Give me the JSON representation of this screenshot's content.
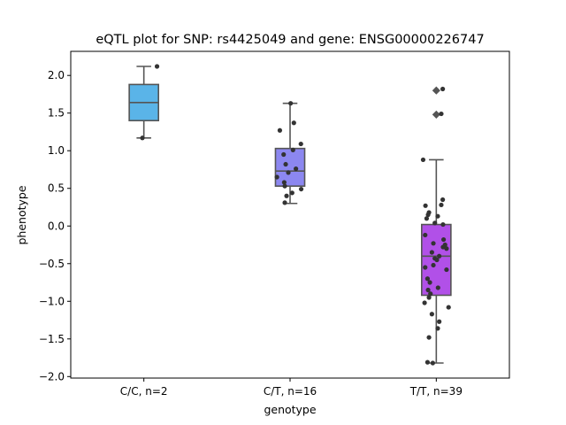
{
  "chart_data": {
    "type": "box",
    "title": "eQTL plot for SNP: rs4425049 and gene: ENSG00000226747",
    "xlabel": "genotype",
    "ylabel": "phenotype",
    "ylim": [
      -2.02,
      2.32
    ],
    "yticks": [
      -2.0,
      -1.5,
      -1.0,
      -0.5,
      0.0,
      0.5,
      1.0,
      1.5,
      2.0
    ],
    "ytick_labels": [
      "−2.0",
      "−1.5",
      "−1.0",
      "−0.5",
      "0.0",
      "0.5",
      "1.0",
      "1.5",
      "2.0"
    ],
    "grid": false,
    "legend": "none",
    "categories": [
      "C/C, n=2",
      "C/T, n=16",
      "T/T, n=39"
    ],
    "boxes": [
      {
        "color": "#5ab4e8",
        "q1": 1.4,
        "median": 1.64,
        "q3": 1.88,
        "whisker_low": 1.17,
        "whisker_high": 2.12,
        "fliers": [],
        "points": [
          [
            1.17,
            -0.05
          ],
          [
            2.12,
            0.45
          ]
        ]
      },
      {
        "color": "#8c87f0",
        "q1": 0.53,
        "median": 0.73,
        "q3": 1.03,
        "whisker_low": 0.3,
        "whisker_high": 1.63,
        "fliers": [],
        "points": [
          [
            1.63,
            0.02
          ],
          [
            1.37,
            0.13
          ],
          [
            1.27,
            -0.35
          ],
          [
            1.09,
            0.37
          ],
          [
            1.01,
            0.1
          ],
          [
            0.95,
            -0.22
          ],
          [
            0.82,
            -0.15
          ],
          [
            0.76,
            0.2
          ],
          [
            0.71,
            -0.06
          ],
          [
            0.65,
            -0.45
          ],
          [
            0.58,
            -0.2
          ],
          [
            0.53,
            -0.18
          ],
          [
            0.49,
            0.38
          ],
          [
            0.44,
            0.07
          ],
          [
            0.4,
            -0.12
          ],
          [
            0.31,
            -0.18
          ]
        ]
      },
      {
        "color": "#b150e8",
        "q1": -0.92,
        "median": -0.4,
        "q3": 0.02,
        "whisker_low": -1.82,
        "whisker_high": 0.88,
        "fliers": [
          1.8,
          1.48
        ],
        "points": [
          [
            1.82,
            0.22
          ],
          [
            1.49,
            0.17
          ],
          [
            0.88,
            -0.45
          ],
          [
            0.35,
            0.22
          ],
          [
            0.28,
            0.17
          ],
          [
            0.27,
            -0.37
          ],
          [
            0.18,
            -0.25
          ],
          [
            0.15,
            -0.28
          ],
          [
            0.13,
            0.05
          ],
          [
            0.1,
            -0.33
          ],
          [
            0.04,
            -0.05
          ],
          [
            0.02,
            0.23
          ],
          [
            -0.12,
            -0.38
          ],
          [
            -0.18,
            0.25
          ],
          [
            -0.23,
            -0.1
          ],
          [
            -0.25,
            0.3
          ],
          [
            -0.28,
            0.23
          ],
          [
            -0.3,
            0.35
          ],
          [
            -0.35,
            -0.15
          ],
          [
            -0.4,
            0.1
          ],
          [
            -0.43,
            -0.05
          ],
          [
            -0.45,
            0.02
          ],
          [
            -0.52,
            -0.1
          ],
          [
            -0.55,
            -0.38
          ],
          [
            -0.58,
            0.35
          ],
          [
            -0.7,
            -0.3
          ],
          [
            -0.75,
            -0.22
          ],
          [
            -0.82,
            0.06
          ],
          [
            -0.85,
            -0.28
          ],
          [
            -0.9,
            -0.2
          ],
          [
            -0.95,
            -0.25
          ],
          [
            -1.02,
            -0.4
          ],
          [
            -1.08,
            0.42
          ],
          [
            -1.17,
            -0.15
          ],
          [
            -1.27,
            0.1
          ],
          [
            -1.36,
            0.05
          ],
          [
            -1.48,
            -0.25
          ],
          [
            -1.81,
            -0.3
          ],
          [
            -1.82,
            -0.12
          ]
        ]
      }
    ]
  }
}
